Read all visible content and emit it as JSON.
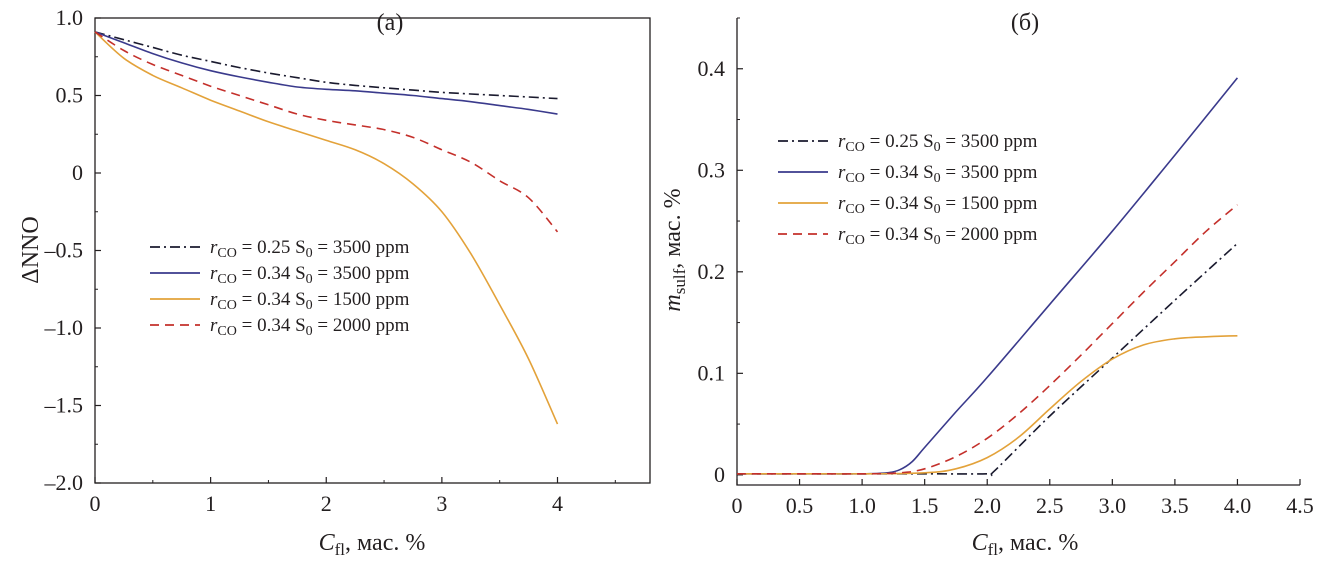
{
  "chart_data": [
    {
      "type": "line",
      "title": "(а)",
      "xlabel": {
        "main": "C",
        "sub": "fl",
        "rest": ", мас. %"
      },
      "ylabel": "ΔNNO",
      "xlim": [
        0,
        4.8
      ],
      "ylim": [
        -2.0,
        1.0
      ],
      "xticks": [
        0,
        1,
        2,
        3,
        4
      ],
      "xtick_labels": [
        "0",
        "1",
        "2",
        "3",
        "4"
      ],
      "yticks": [
        1.0,
        0.5,
        0,
        -0.5,
        -1.0,
        -1.5,
        -2.0
      ],
      "ytick_labels": [
        "1.0",
        "0.5",
        "0",
        "–0.5",
        "–1.0",
        "–1.5",
        "–2.0"
      ],
      "grid": false,
      "legend_position": "center-left",
      "series": [
        {
          "name": "r_CO = 0.25 S_0 = 3500 ppm",
          "legend": {
            "r": "r",
            "rsub": "CO",
            "eq1": " = 0.25 S",
            "ssub": "0",
            "eq2": " = 3500 ppm"
          },
          "color": "#1a1a2e",
          "style": "dashdot",
          "x": [
            0,
            0.25,
            0.5,
            0.75,
            1.0,
            1.25,
            1.5,
            1.75,
            2.0,
            2.25,
            2.5,
            2.75,
            3.0,
            3.25,
            3.5,
            3.75,
            4.0
          ],
          "y": [
            0.91,
            0.86,
            0.81,
            0.76,
            0.72,
            0.68,
            0.645,
            0.615,
            0.585,
            0.565,
            0.55,
            0.535,
            0.52,
            0.51,
            0.5,
            0.49,
            0.48
          ]
        },
        {
          "name": "r_CO = 0.34 S_0 = 3500 ppm",
          "legend": {
            "r": "r",
            "rsub": "CO",
            "eq1": " = 0.34 S",
            "ssub": "0",
            "eq2": " = 3500 ppm"
          },
          "color": "#3a3a8c",
          "style": "solid",
          "x": [
            0,
            0.25,
            0.5,
            0.75,
            1.0,
            1.25,
            1.5,
            1.75,
            2.0,
            2.25,
            2.5,
            2.75,
            3.0,
            3.25,
            3.5,
            3.75,
            4.0
          ],
          "y": [
            0.91,
            0.84,
            0.77,
            0.71,
            0.66,
            0.62,
            0.585,
            0.555,
            0.54,
            0.53,
            0.515,
            0.5,
            0.48,
            0.46,
            0.435,
            0.41,
            0.38
          ]
        },
        {
          "name": "r_CO = 0.34 S_0 = 1500 ppm",
          "legend": {
            "r": "r",
            "rsub": "CO",
            "eq1": " = 0.34 S",
            "ssub": "0",
            "eq2": " = 1500 ppm"
          },
          "color": "#e3a23a",
          "style": "solid",
          "x": [
            0,
            0.25,
            0.5,
            0.75,
            1.0,
            1.25,
            1.5,
            1.75,
            2.0,
            2.25,
            2.5,
            2.75,
            3.0,
            3.25,
            3.5,
            3.75,
            4.0
          ],
          "y": [
            0.91,
            0.74,
            0.63,
            0.55,
            0.47,
            0.4,
            0.33,
            0.27,
            0.21,
            0.15,
            0.06,
            -0.07,
            -0.25,
            -0.52,
            -0.85,
            -1.2,
            -1.62
          ]
        },
        {
          "name": "r_CO = 0.34 S_0 = 2000 ppm",
          "legend": {
            "r": "r",
            "rsub": "CO",
            "eq1": " = 0.34 S",
            "ssub": "0",
            "eq2": " = 2000 ppm"
          },
          "color": "#c4302b",
          "style": "dashed",
          "x": [
            0,
            0.25,
            0.5,
            0.75,
            1.0,
            1.25,
            1.5,
            1.75,
            2.0,
            2.25,
            2.5,
            2.75,
            3.0,
            3.25,
            3.5,
            3.75,
            4.0
          ],
          "y": [
            0.91,
            0.79,
            0.7,
            0.63,
            0.56,
            0.5,
            0.44,
            0.38,
            0.34,
            0.31,
            0.28,
            0.23,
            0.15,
            0.07,
            -0.05,
            -0.16,
            -0.38
          ]
        }
      ]
    },
    {
      "type": "line",
      "title": "(б)",
      "xlabel": {
        "main": "C",
        "sub": "fl",
        "rest": ", мас. %"
      },
      "ylabel": {
        "main": "m",
        "sub": "sulf",
        "rest": ", мас. %"
      },
      "xlim": [
        0,
        4.5
      ],
      "ylim": [
        -0.01,
        0.45
      ],
      "xticks": [
        0,
        0.5,
        1.0,
        1.5,
        2.0,
        2.5,
        3.0,
        3.5,
        4.0,
        4.5
      ],
      "xtick_labels": [
        "0",
        "0.5",
        "1.0",
        "1.5",
        "2.0",
        "2.5",
        "3.0",
        "3.5",
        "4.0",
        "4.5"
      ],
      "yticks": [
        0,
        0.1,
        0.2,
        0.3,
        0.4
      ],
      "ytick_labels": [
        "0",
        "0.1",
        "0.2",
        "0.3",
        "0.4"
      ],
      "grid": false,
      "legend_position": "upper-left",
      "series": [
        {
          "name": "r_CO = 0.25 S_0 = 3500 ppm",
          "legend": {
            "r": "r",
            "rsub": "CO",
            "eq1": " = 0.25 S",
            "ssub": "0",
            "eq2": " = 3500 ppm"
          },
          "color": "#1a1a2e",
          "style": "dashdot",
          "x": [
            0,
            0.5,
            1.0,
            1.5,
            2.0,
            2.05,
            2.5,
            3.0,
            3.5,
            4.0
          ],
          "y": [
            0.001,
            0.001,
            0.001,
            0.001,
            0.001,
            0.003,
            0.058,
            0.115,
            0.172,
            0.228
          ]
        },
        {
          "name": "r_CO = 0.34 S_0 = 3500 ppm",
          "legend": {
            "r": "r",
            "rsub": "CO",
            "eq1": " = 0.34 S",
            "ssub": "0",
            "eq2": " = 3500 ppm"
          },
          "color": "#3a3a8c",
          "style": "solid",
          "x": [
            0,
            0.5,
            1.0,
            1.2,
            1.3,
            1.4,
            1.5,
            1.75,
            2.0,
            2.5,
            3.0,
            3.5,
            4.0
          ],
          "y": [
            0.001,
            0.001,
            0.001,
            0.002,
            0.005,
            0.013,
            0.027,
            0.062,
            0.096,
            0.168,
            0.24,
            0.315,
            0.391
          ]
        },
        {
          "name": "r_CO = 0.34 S_0 = 1500 ppm",
          "legend": {
            "r": "r",
            "rsub": "CO",
            "eq1": " = 0.34 S",
            "ssub": "0",
            "eq2": " = 1500 ppm"
          },
          "color": "#e3a23a",
          "style": "solid",
          "x": [
            0,
            0.5,
            1.0,
            1.5,
            1.75,
            2.0,
            2.25,
            2.5,
            2.75,
            3.0,
            3.25,
            3.5,
            3.75,
            4.0
          ],
          "y": [
            0.001,
            0.001,
            0.001,
            0.002,
            0.006,
            0.017,
            0.037,
            0.065,
            0.092,
            0.114,
            0.128,
            0.134,
            0.136,
            0.137
          ]
        },
        {
          "name": "r_CO = 0.34 S_0 = 2000 ppm",
          "legend": {
            "r": "r",
            "rsub": "CO",
            "eq1": " = 0.34 S",
            "ssub": "0",
            "eq2": " = 2000 ppm"
          },
          "color": "#c4302b",
          "style": "dashed",
          "x": [
            0,
            0.5,
            1.0,
            1.3,
            1.5,
            1.75,
            2.0,
            2.25,
            2.5,
            2.75,
            3.0,
            3.25,
            3.5,
            3.75,
            4.0
          ],
          "y": [
            0.001,
            0.001,
            0.001,
            0.002,
            0.006,
            0.018,
            0.036,
            0.06,
            0.088,
            0.118,
            0.149,
            0.18,
            0.21,
            0.24,
            0.266
          ]
        }
      ]
    }
  ]
}
